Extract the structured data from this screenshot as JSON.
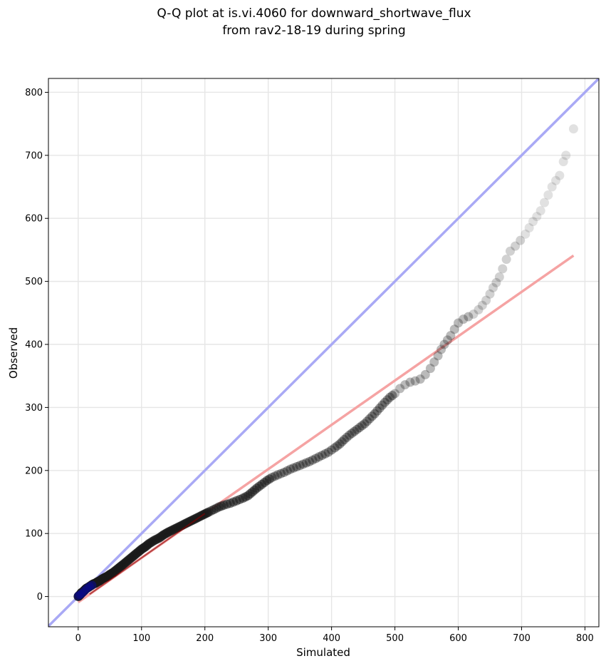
{
  "chart_data": {
    "type": "scatter",
    "title_lines": [
      "Q-Q plot at is.vi.4060 for downward_shortwave_flux",
      "from rav2-18-19 during spring"
    ],
    "xlabel": "Simulated",
    "ylabel": "Observed",
    "xlim": [
      -47,
      822
    ],
    "ylim": [
      -48,
      822
    ],
    "x_ticks": [
      0,
      100,
      200,
      300,
      400,
      500,
      600,
      700,
      800
    ],
    "y_ticks": [
      0,
      100,
      200,
      300,
      400,
      500,
      600,
      700,
      800
    ],
    "grid": true,
    "colors": {
      "points": "#1a1a1a",
      "identity_line": "#a9a9f5",
      "fit_line": "#f5a3a3",
      "low_quantile_fit": "#8b0000",
      "low_quantile_points": "#0a0a8a"
    },
    "identity_line": {
      "x": [
        -47,
        822
      ],
      "y": [
        -47,
        822
      ]
    },
    "fit_line": {
      "x": [
        0,
        782
      ],
      "y": [
        -9,
        541
      ]
    },
    "quantile_points": [
      [
        0,
        0
      ],
      [
        1,
        1
      ],
      [
        2,
        2
      ],
      [
        3,
        3
      ],
      [
        4,
        4
      ],
      [
        5,
        6
      ],
      [
        7,
        7
      ],
      [
        9,
        9
      ],
      [
        11,
        11
      ],
      [
        13,
        13
      ],
      [
        15,
        14
      ],
      [
        18,
        16
      ],
      [
        21,
        18
      ],
      [
        24,
        20
      ],
      [
        27,
        21
      ],
      [
        30,
        23
      ],
      [
        34,
        25
      ],
      [
        38,
        28
      ],
      [
        42,
        30
      ],
      [
        46,
        32
      ],
      [
        50,
        35
      ],
      [
        55,
        38
      ],
      [
        60,
        42
      ],
      [
        65,
        46
      ],
      [
        70,
        50
      ],
      [
        76,
        55
      ],
      [
        82,
        60
      ],
      [
        88,
        65
      ],
      [
        94,
        70
      ],
      [
        100,
        75
      ],
      [
        106,
        79
      ],
      [
        112,
        84
      ],
      [
        120,
        89
      ],
      [
        128,
        93
      ],
      [
        135,
        98
      ],
      [
        142,
        102
      ],
      [
        150,
        106
      ],
      [
        158,
        110
      ],
      [
        166,
        114
      ],
      [
        174,
        118
      ],
      [
        182,
        122
      ],
      [
        190,
        126
      ],
      [
        198,
        130
      ],
      [
        206,
        134
      ],
      [
        214,
        138
      ],
      [
        222,
        142
      ],
      [
        230,
        145
      ],
      [
        240,
        148
      ],
      [
        250,
        152
      ],
      [
        260,
        156
      ],
      [
        268,
        160
      ],
      [
        275,
        166
      ],
      [
        282,
        172
      ],
      [
        290,
        178
      ],
      [
        298,
        184
      ],
      [
        306,
        189
      ],
      [
        315,
        193
      ],
      [
        325,
        197
      ],
      [
        335,
        202
      ],
      [
        345,
        206
      ],
      [
        355,
        210
      ],
      [
        365,
        214
      ],
      [
        375,
        219
      ],
      [
        385,
        224
      ],
      [
        395,
        229
      ],
      [
        405,
        236
      ],
      [
        413,
        242
      ],
      [
        420,
        249
      ],
      [
        428,
        256
      ],
      [
        436,
        262
      ],
      [
        444,
        268
      ],
      [
        452,
        274
      ],
      [
        460,
        282
      ],
      [
        468,
        290
      ],
      [
        476,
        299
      ],
      [
        484,
        308
      ],
      [
        492,
        316
      ],
      [
        500,
        322
      ],
      [
        508,
        330
      ],
      [
        516,
        336
      ],
      [
        524,
        340
      ],
      [
        532,
        342
      ],
      [
        540,
        345
      ],
      [
        548,
        352
      ],
      [
        556,
        362
      ],
      [
        562,
        372
      ],
      [
        568,
        382
      ],
      [
        573,
        392
      ],
      [
        578,
        400
      ],
      [
        583,
        407
      ],
      [
        588,
        414
      ],
      [
        594,
        424
      ],
      [
        600,
        434
      ],
      [
        608,
        440
      ],
      [
        616,
        444
      ],
      [
        624,
        448
      ],
      [
        632,
        455
      ],
      [
        638,
        462
      ],
      [
        644,
        470
      ],
      [
        650,
        480
      ],
      [
        655,
        490
      ],
      [
        660,
        498
      ],
      [
        665,
        507
      ],
      [
        670,
        520
      ],
      [
        676,
        535
      ],
      [
        682,
        548
      ],
      [
        690,
        556
      ],
      [
        698,
        565
      ],
      [
        706,
        575
      ],
      [
        712,
        585
      ],
      [
        718,
        595
      ],
      [
        724,
        603
      ],
      [
        730,
        612
      ],
      [
        736,
        625
      ],
      [
        742,
        637
      ],
      [
        748,
        650
      ],
      [
        754,
        660
      ],
      [
        760,
        668
      ],
      [
        766,
        690
      ],
      [
        770,
        700
      ],
      [
        782,
        742
      ]
    ]
  }
}
